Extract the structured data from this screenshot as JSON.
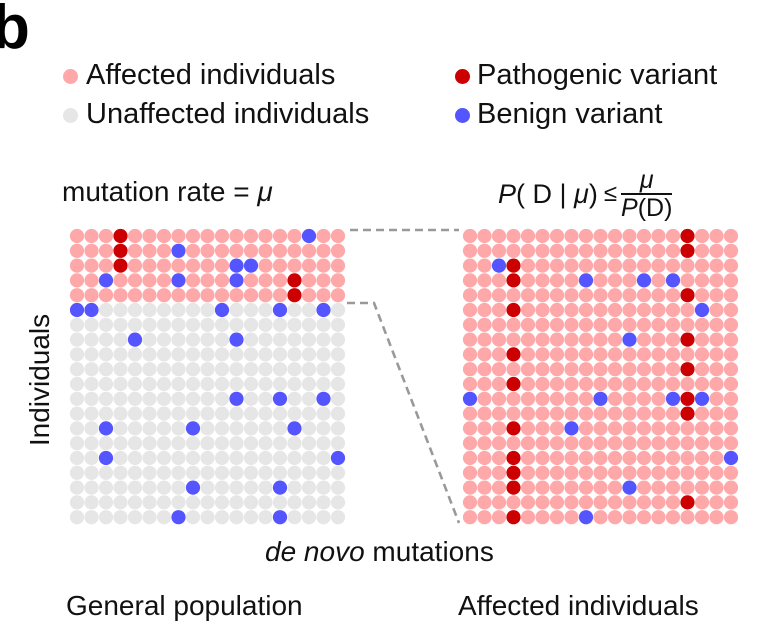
{
  "panel_label": "b",
  "legend": [
    {
      "label": "Affected individuals",
      "color": "#FFA8AA",
      "icon": "pink-dot-icon"
    },
    {
      "label": "Unaffected individuals",
      "color": "#E6E6E6",
      "icon": "gray-dot-icon"
    },
    {
      "label": "Pathogenic variant",
      "color": "#CC0000",
      "icon": "red-dot-icon"
    },
    {
      "label": "Benign variant",
      "color": "#5555FF",
      "icon": "blue-dot-icon"
    }
  ],
  "left_title": {
    "text": "mutation rate = ",
    "symbol": "μ"
  },
  "formula": {
    "lhs_P": "P",
    "lhs_open": "( D | ",
    "lhs_mu": "μ",
    "lhs_close": ")",
    "relation": "≤",
    "numerator": "μ",
    "denominator_P": "P",
    "denominator_rest": "(D)"
  },
  "y_axis_label": "Individuals",
  "x_axis_label": {
    "italic": "de novo",
    "rest": " mutations"
  },
  "groups": {
    "left": "General population",
    "right": "Affected individuals"
  },
  "colors": {
    "affected": "#FFA8AA",
    "unaffected": "#E6E6E6",
    "pathogenic": "#CC0000",
    "benign": "#5555FF",
    "connector": "#999999"
  },
  "grids": {
    "columns": 19,
    "rows": 20,
    "left": {
      "name": "general-population-grid",
      "affected_rows": [
        0,
        1,
        2,
        3,
        4
      ],
      "pathogenic": [
        [
          0,
          3
        ],
        [
          1,
          3
        ],
        [
          2,
          3
        ],
        [
          3,
          15
        ],
        [
          4,
          15
        ]
      ],
      "benign": [
        [
          0,
          16
        ],
        [
          1,
          7
        ],
        [
          2,
          11
        ],
        [
          2,
          12
        ],
        [
          3,
          2
        ],
        [
          3,
          7
        ],
        [
          3,
          11
        ],
        [
          5,
          0
        ],
        [
          5,
          1
        ],
        [
          5,
          10
        ],
        [
          5,
          14
        ],
        [
          5,
          17
        ],
        [
          7,
          4
        ],
        [
          7,
          11
        ],
        [
          11,
          11
        ],
        [
          11,
          14
        ],
        [
          11,
          17
        ],
        [
          13,
          2
        ],
        [
          13,
          8
        ],
        [
          13,
          15
        ],
        [
          15,
          2
        ],
        [
          15,
          18
        ],
        [
          17,
          8
        ],
        [
          17,
          14
        ],
        [
          19,
          7
        ],
        [
          19,
          14
        ]
      ]
    },
    "right": {
      "name": "affected-individuals-grid",
      "affected_rows": "all",
      "pathogenic": [
        [
          0,
          15
        ],
        [
          1,
          15
        ],
        [
          2,
          3
        ],
        [
          3,
          3
        ],
        [
          4,
          15
        ],
        [
          5,
          3
        ],
        [
          7,
          15
        ],
        [
          8,
          3
        ],
        [
          9,
          15
        ],
        [
          10,
          3
        ],
        [
          11,
          15
        ],
        [
          12,
          15
        ],
        [
          13,
          3
        ],
        [
          15,
          3
        ],
        [
          16,
          3
        ],
        [
          17,
          3
        ],
        [
          18,
          15
        ],
        [
          19,
          3
        ]
      ],
      "benign": [
        [
          2,
          2
        ],
        [
          3,
          8
        ],
        [
          3,
          12
        ],
        [
          3,
          14
        ],
        [
          5,
          16
        ],
        [
          7,
          11
        ],
        [
          11,
          0
        ],
        [
          11,
          9
        ],
        [
          11,
          14
        ],
        [
          11,
          16
        ],
        [
          13,
          7
        ],
        [
          15,
          18
        ],
        [
          17,
          11
        ],
        [
          19,
          8
        ]
      ]
    }
  }
}
